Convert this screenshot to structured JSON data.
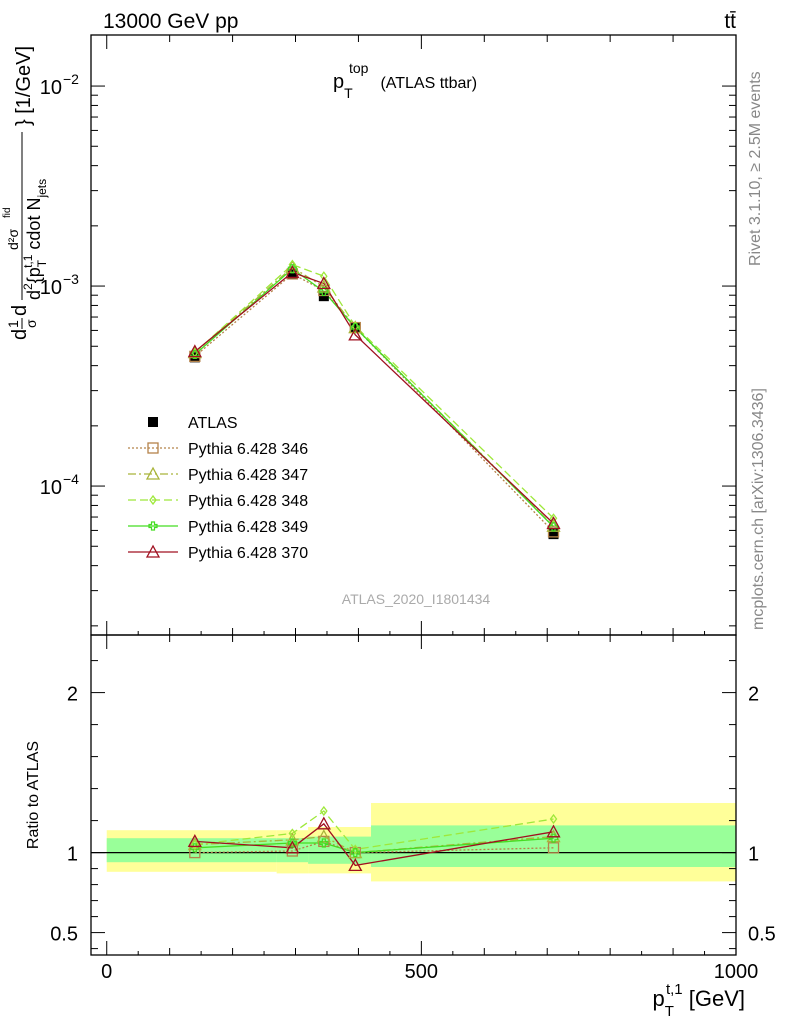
{
  "header": {
    "left": "13000 GeV pp",
    "right": "tt̄"
  },
  "side_texts": {
    "rivet": "Rivet 3.1.10, ≥ 2.5M events",
    "mcplots": "mcplots.cern.ch [arXiv:1306.3436]"
  },
  "watermark": "ATLAS_2020_I1801434",
  "colors": {
    "data": "#000000",
    "346": "#b5834a",
    "347": "#a9b43a",
    "348": "#9ee83a",
    "349": "#44dd22",
    "370": "#a01020",
    "band_inner": "#99ff99",
    "band_outer": "#ffff99"
  },
  "chart_data": [
    {
      "type": "line",
      "panel": "main",
      "title": "p_T^top (ATLAS ttbar)",
      "title_parts": {
        "main": "p",
        "sub": "T",
        "sup": "top",
        "rest": " (ATLAS ttbar)"
      },
      "ylabel": "d 1/σ d d²σ^fid / d² {p_T^{t,1} cdot N_jets} [1/GeV]",
      "ylabel_parts": {
        "frac_top": "d",
        "one": "1",
        "sigma": "σ",
        "d2": "d",
        "sig_fid": "d²σ",
        "fid_sup": "fid",
        "den_d": "d",
        "den_sup": "2",
        "den_p": "{p",
        "den_sub": "T",
        "den_sup2": "t,1",
        "den_rest": " cdot N",
        "den_jets": "jets",
        "units": "} [1/GeV]"
      },
      "yscale": "log",
      "ylim": [
        1.8e-05,
        0.018
      ],
      "xlim": [
        -25,
        1000
      ],
      "y_ticks": [
        {
          "value": 0.01,
          "base": "10",
          "exp": "−2"
        },
        {
          "value": 0.001,
          "base": "10",
          "exp": "−3"
        },
        {
          "value": 0.0001,
          "base": "10",
          "exp": "−4"
        }
      ],
      "x": [
        140,
        295,
        345,
        395,
        710
      ],
      "series": [
        {
          "name": "ATLAS",
          "key": "data",
          "marker": "square",
          "values": [
            0.00044,
            0.00115,
            0.00089,
            0.00062,
            5.75e-05
          ]
        },
        {
          "name": "Pythia 6.428 346",
          "key": "346",
          "marker": "open-square",
          "dash": "2,2",
          "values": [
            0.000445,
            0.00115,
            0.00095,
            0.00062,
            5.9e-05
          ]
        },
        {
          "name": "Pythia 6.428 347",
          "key": "347",
          "marker": "open-triangle",
          "dash": "8,3,2,3",
          "values": [
            0.000465,
            0.00124,
            0.00099,
            0.00062,
            6.3e-05
          ]
        },
        {
          "name": "Pythia 6.428 348",
          "key": "348",
          "marker": "diamond",
          "dash": "8,4",
          "values": [
            0.000465,
            0.00128,
            0.00112,
            0.00063,
            6.9e-05
          ]
        },
        {
          "name": "Pythia 6.428 349",
          "key": "349",
          "marker": "plus",
          "dash": "",
          "values": [
            0.000455,
            0.00122,
            0.00094,
            0.00062,
            6.25e-05
          ]
        },
        {
          "name": "Pythia 6.428 370",
          "key": "370",
          "marker": "open-triangle",
          "dash": "",
          "values": [
            0.00047,
            0.00117,
            0.00103,
            0.00057,
            6.5e-05
          ]
        }
      ]
    },
    {
      "type": "line",
      "panel": "ratio",
      "ylabel": "Ratio to ATLAS",
      "xlabel": "p_T^{t,1} [GeV]",
      "xlabel_parts": {
        "main": "p",
        "sub": "T",
        "sup": "t,1",
        "rest": " [GeV]"
      },
      "ylim": [
        0.36,
        2.36
      ],
      "xlim": [
        -25,
        1000
      ],
      "y_ticks": [
        {
          "value": 0.5,
          "label": "0.5"
        },
        {
          "value": 1,
          "label": "1"
        },
        {
          "value": 2,
          "label": "2"
        }
      ],
      "x_ticks": [
        {
          "value": 0,
          "label": "0"
        },
        {
          "value": 500,
          "label": "500"
        },
        {
          "value": 1000,
          "label": "1000"
        }
      ],
      "bands": [
        {
          "x0": 0,
          "x1": 270,
          "inner": [
            0.94,
            1.09
          ],
          "outer": [
            0.88,
            1.14
          ]
        },
        {
          "x0": 270,
          "x1": 320,
          "inner": [
            0.94,
            1.09
          ],
          "outer": [
            0.87,
            1.14
          ]
        },
        {
          "x0": 320,
          "x1": 420,
          "inner": [
            0.93,
            1.1
          ],
          "outer": [
            0.87,
            1.16
          ]
        },
        {
          "x0": 420,
          "x1": 1000,
          "inner": [
            0.91,
            1.17
          ],
          "outer": [
            0.82,
            1.31
          ]
        }
      ],
      "x": [
        140,
        295,
        345,
        395,
        710
      ],
      "series": [
        {
          "name": "Pythia 6.428 346",
          "key": "346",
          "marker": "open-square",
          "dash": "2,2",
          "values": [
            1.0,
            1.01,
            1.07,
            1.0,
            1.03
          ]
        },
        {
          "name": "Pythia 6.428 347",
          "key": "347",
          "marker": "open-triangle",
          "dash": "8,3,2,3",
          "values": [
            1.05,
            1.08,
            1.1,
            1.0,
            1.1
          ]
        },
        {
          "name": "Pythia 6.428 348",
          "key": "348",
          "marker": "diamond",
          "dash": "8,4",
          "values": [
            1.05,
            1.12,
            1.26,
            1.02,
            1.21
          ]
        },
        {
          "name": "Pythia 6.428 349",
          "key": "349",
          "marker": "plus",
          "dash": "",
          "values": [
            1.03,
            1.06,
            1.06,
            1.0,
            1.09
          ]
        },
        {
          "name": "Pythia 6.428 370",
          "key": "370",
          "marker": "open-triangle",
          "dash": "",
          "values": [
            1.07,
            1.03,
            1.18,
            0.92,
            1.13
          ]
        }
      ]
    }
  ]
}
